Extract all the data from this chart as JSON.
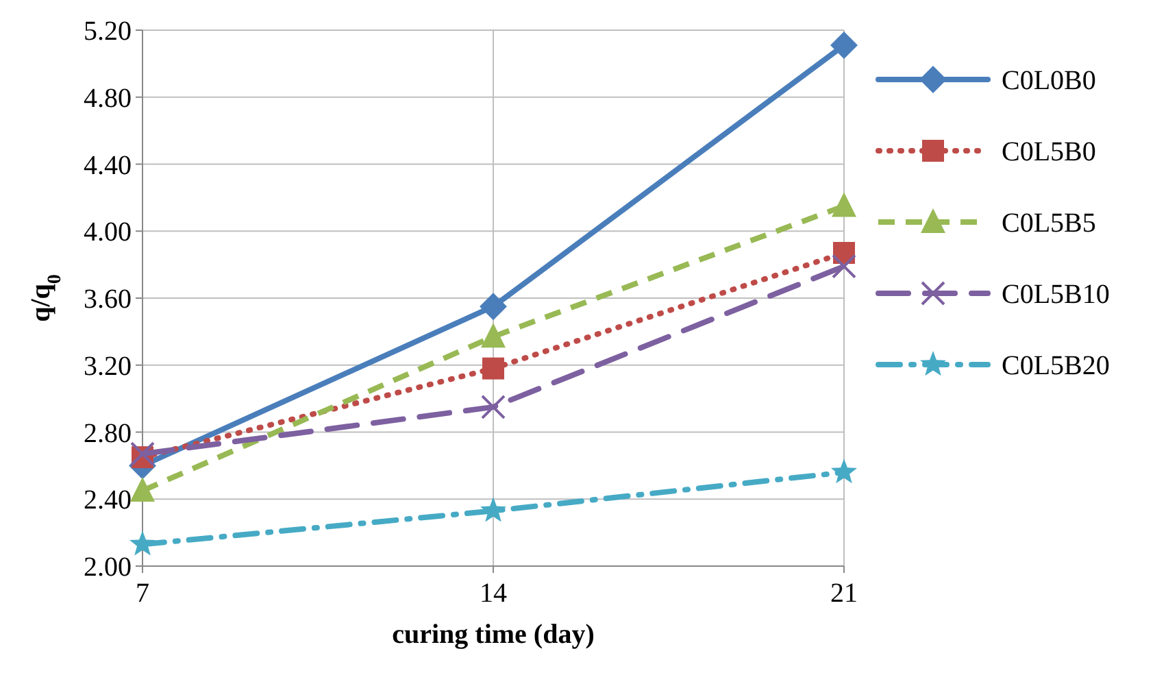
{
  "chart_data": {
    "type": "line",
    "xlabel": "curing time (day)",
    "ylabel": "q/q$_{0}$",
    "x": [
      7,
      14,
      21
    ],
    "xlim": [
      7,
      21
    ],
    "xticks": [
      7,
      14,
      21
    ],
    "ylim": [
      2,
      5.2
    ],
    "yticks": [
      {
        "value": 2,
        "label": "2.00"
      },
      {
        "value": 2.4,
        "label": "2.40"
      },
      {
        "value": 2.8,
        "label": "2.80"
      },
      {
        "value": 3.2,
        "label": "3.20"
      },
      {
        "value": 3.6,
        "label": "3.60"
      },
      {
        "value": 4,
        "label": "4.00"
      },
      {
        "value": 4.4,
        "label": "4.40"
      },
      {
        "value": 4.8,
        "label": "4.80"
      },
      {
        "value": 5.2,
        "label": "5.20"
      }
    ],
    "grid": true,
    "legend": "right",
    "series": [
      {
        "name": "C0L0B0",
        "color": "#4a7ebb",
        "values": [
          2.6,
          3.55,
          5.11
        ],
        "marker": "diamond",
        "line_style": "solid"
      },
      {
        "name": "C0L5B0",
        "color": "#be4b48",
        "values": [
          2.65,
          3.18,
          3.87
        ],
        "marker": "square",
        "line_style": "dotted"
      },
      {
        "name": "C0L5B5",
        "color": "#98b954",
        "values": [
          2.45,
          3.37,
          4.15
        ],
        "marker": "triangle",
        "line_style": "dashed"
      },
      {
        "name": "C0L5B10",
        "color": "#7d60a0",
        "values": [
          2.67,
          2.95,
          3.79
        ],
        "marker": "cross",
        "line_style": "longdash"
      },
      {
        "name": "C0L5B20",
        "color": "#46aac5",
        "values": [
          2.13,
          2.33,
          2.56
        ],
        "marker": "star",
        "line_style": "dashdot"
      }
    ]
  }
}
